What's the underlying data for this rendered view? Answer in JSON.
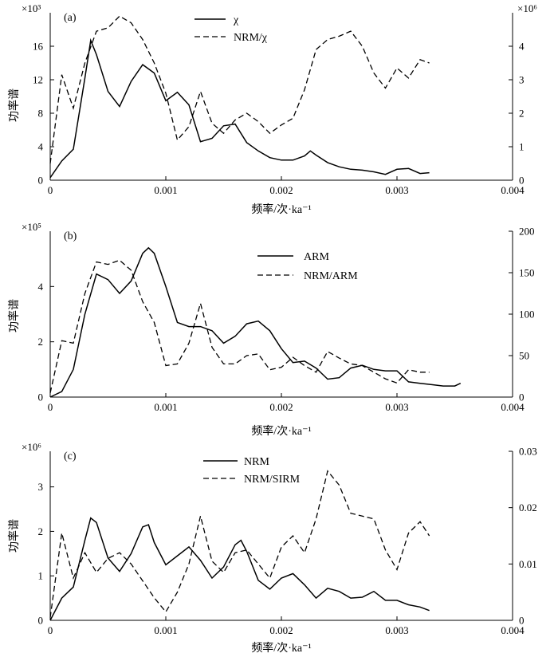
{
  "chart_data": [
    {
      "type": "line",
      "panel_label": "(a)",
      "xlabel": "频率/次·ka⁻¹",
      "ylabel": "功率谱",
      "xlim": [
        0,
        0.004
      ],
      "x_ticks": [
        "0",
        "0.001",
        "0.002",
        "0.003",
        "0.004"
      ],
      "ylim_left": [
        0,
        20
      ],
      "left_scale": "×10³",
      "left_ticks": [
        "0",
        "4",
        "8",
        "12",
        "16"
      ],
      "ylim_right": [
        0,
        5
      ],
      "right_scale": "×10⁶",
      "right_ticks": [
        "0",
        "1",
        "2",
        "3",
        "4"
      ],
      "series": [
        {
          "name": "χ",
          "style": "solid",
          "axis": "left",
          "x": [
            0,
            0.0001,
            0.0002,
            0.0003,
            0.00035,
            0.0004,
            0.0005,
            0.0006,
            0.0007,
            0.0008,
            0.0009,
            0.001,
            0.0011,
            0.0012,
            0.0013,
            0.0014,
            0.0015,
            0.0016,
            0.0017,
            0.0018,
            0.0019,
            0.002,
            0.0021,
            0.0022,
            0.00225,
            0.0023,
            0.0024,
            0.0025,
            0.0026,
            0.0027,
            0.0028,
            0.0029,
            0.003,
            0.0031,
            0.0032,
            0.00328
          ],
          "values": [
            0.3,
            2.3,
            3.7,
            12.2,
            16.7,
            15.0,
            10.6,
            8.8,
            11.8,
            13.8,
            12.8,
            9.5,
            10.5,
            9.0,
            4.6,
            5.0,
            6.5,
            6.7,
            4.5,
            3.5,
            2.7,
            2.4,
            2.4,
            2.9,
            3.5,
            3.0,
            2.1,
            1.6,
            1.3,
            1.2,
            1.0,
            0.7,
            1.3,
            1.4,
            0.8,
            0.9
          ]
        },
        {
          "name": "NRM/χ",
          "style": "dashed",
          "axis": "right",
          "x": [
            0,
            0.0001,
            0.0002,
            0.0003,
            0.0004,
            0.0005,
            0.0006,
            0.0007,
            0.0008,
            0.0009,
            0.001,
            0.0011,
            0.0012,
            0.0013,
            0.0014,
            0.0015,
            0.0016,
            0.0017,
            0.0018,
            0.0019,
            0.002,
            0.0021,
            0.0022,
            0.0023,
            0.0024,
            0.0025,
            0.0026,
            0.0027,
            0.0028,
            0.0029,
            0.003,
            0.0031,
            0.0032,
            0.00328
          ],
          "values": [
            0.5,
            3.15,
            2.15,
            3.5,
            4.45,
            4.55,
            4.9,
            4.7,
            4.2,
            3.5,
            2.6,
            1.2,
            1.6,
            2.65,
            1.7,
            1.4,
            1.8,
            2.0,
            1.75,
            1.4,
            1.65,
            1.85,
            2.7,
            3.9,
            4.2,
            4.3,
            4.45,
            4.0,
            3.2,
            2.75,
            3.35,
            3.05,
            3.6,
            3.5
          ]
        }
      ]
    },
    {
      "type": "line",
      "panel_label": "(b)",
      "xlabel": "频率/次·ka⁻¹",
      "ylabel": "功率谱",
      "xlim": [
        0,
        0.004
      ],
      "x_ticks": [
        "0",
        "0.001",
        "0.002",
        "0.003",
        "0.004"
      ],
      "ylim_left": [
        0,
        6
      ],
      "left_scale": "×10⁵",
      "left_ticks": [
        "0",
        "2",
        "4"
      ],
      "ylim_right": [
        0,
        200
      ],
      "right_scale": "",
      "right_ticks": [
        "0",
        "50",
        "100",
        "150",
        "200"
      ],
      "series": [
        {
          "name": "ARM",
          "style": "solid",
          "axis": "left",
          "x": [
            0,
            0.0001,
            0.0002,
            0.0003,
            0.0004,
            0.0005,
            0.0006,
            0.0007,
            0.0008,
            0.00085,
            0.0009,
            0.001,
            0.0011,
            0.0012,
            0.0013,
            0.0014,
            0.0015,
            0.0016,
            0.0017,
            0.0018,
            0.0019,
            0.002,
            0.0021,
            0.0022,
            0.0023,
            0.0024,
            0.0025,
            0.0026,
            0.0027,
            0.0028,
            0.0029,
            0.003,
            0.0031,
            0.0032,
            0.0033,
            0.0034,
            0.0035,
            0.00355
          ],
          "values": [
            0.0,
            0.2,
            1.0,
            3.0,
            4.45,
            4.25,
            3.75,
            4.2,
            5.2,
            5.4,
            5.2,
            4.0,
            2.7,
            2.55,
            2.55,
            2.4,
            1.95,
            2.2,
            2.65,
            2.75,
            2.4,
            1.75,
            1.25,
            1.3,
            1.05,
            0.65,
            0.7,
            1.05,
            1.15,
            1.0,
            0.95,
            0.95,
            0.55,
            0.5,
            0.45,
            0.4,
            0.4,
            0.5
          ]
        },
        {
          "name": "NRM/ARM",
          "style": "dashed",
          "axis": "right",
          "x": [
            0,
            0.0001,
            0.0002,
            0.0003,
            0.0004,
            0.0005,
            0.0006,
            0.0007,
            0.0008,
            0.0009,
            0.001,
            0.0011,
            0.0012,
            0.0013,
            0.0014,
            0.0015,
            0.0016,
            0.0017,
            0.0018,
            0.0019,
            0.002,
            0.0021,
            0.0022,
            0.0023,
            0.0024,
            0.0025,
            0.0026,
            0.0027,
            0.0028,
            0.0029,
            0.003,
            0.0031,
            0.0032,
            0.00328
          ],
          "values": [
            5,
            68,
            65,
            125,
            163,
            160,
            165,
            153,
            115,
            90,
            38,
            40,
            65,
            113,
            60,
            40,
            40,
            50,
            52,
            33,
            36,
            48,
            38,
            30,
            55,
            47,
            40,
            38,
            30,
            22,
            17,
            33,
            30,
            30
          ]
        }
      ]
    },
    {
      "type": "line",
      "panel_label": "(c)",
      "xlabel": "频率/次·ka⁻¹",
      "ylabel": "功率谱",
      "xlim": [
        0,
        0.004
      ],
      "x_ticks": [
        "0",
        "0.001",
        "0.002",
        "0.003",
        "0.004"
      ],
      "ylim_left": [
        0,
        3.8
      ],
      "left_scale": "×10⁶",
      "left_ticks": [
        "0",
        "1",
        "2",
        "3"
      ],
      "ylim_right": [
        0,
        0.03
      ],
      "right_scale": "",
      "right_ticks": [
        "0",
        "0.01",
        "0.02",
        "0.03"
      ],
      "series": [
        {
          "name": "NRM",
          "style": "solid",
          "axis": "left",
          "x": [
            0,
            0.0001,
            0.0002,
            0.0003,
            0.00035,
            0.0004,
            0.0005,
            0.0006,
            0.0007,
            0.0008,
            0.00085,
            0.0009,
            0.001,
            0.0011,
            0.0012,
            0.0013,
            0.0014,
            0.0015,
            0.0016,
            0.00165,
            0.0017,
            0.0018,
            0.0019,
            0.002,
            0.0021,
            0.0022,
            0.0023,
            0.0024,
            0.0025,
            0.0026,
            0.0027,
            0.0028,
            0.0029,
            0.003,
            0.0031,
            0.0032,
            0.00328
          ],
          "values": [
            0.0,
            0.5,
            0.75,
            1.8,
            2.3,
            2.2,
            1.4,
            1.1,
            1.5,
            2.1,
            2.15,
            1.75,
            1.25,
            1.45,
            1.65,
            1.35,
            0.95,
            1.2,
            1.7,
            1.8,
            1.55,
            0.9,
            0.7,
            0.95,
            1.05,
            0.8,
            0.5,
            0.72,
            0.65,
            0.5,
            0.52,
            0.65,
            0.45,
            0.45,
            0.35,
            0.3,
            0.22
          ]
        },
        {
          "name": "NRM/SIRM",
          "style": "dashed",
          "axis": "right",
          "x": [
            0,
            0.0001,
            0.0002,
            0.0003,
            0.0004,
            0.0005,
            0.0006,
            0.0007,
            0.0008,
            0.0009,
            0.001,
            0.0011,
            0.0012,
            0.0013,
            0.0014,
            0.0015,
            0.0016,
            0.0017,
            0.0018,
            0.0019,
            0.002,
            0.0021,
            0.0022,
            0.0023,
            0.0024,
            0.0025,
            0.0026,
            0.0027,
            0.0028,
            0.0029,
            0.003,
            0.0031,
            0.0032,
            0.00328
          ],
          "values": [
            0.0005,
            0.0155,
            0.0075,
            0.012,
            0.0085,
            0.011,
            0.012,
            0.01,
            0.007,
            0.004,
            0.0015,
            0.005,
            0.01,
            0.0185,
            0.0105,
            0.0085,
            0.012,
            0.0125,
            0.01,
            0.0075,
            0.013,
            0.015,
            0.012,
            0.018,
            0.0265,
            0.024,
            0.019,
            0.0185,
            0.018,
            0.0125,
            0.009,
            0.0155,
            0.0175,
            0.015
          ]
        }
      ]
    }
  ]
}
